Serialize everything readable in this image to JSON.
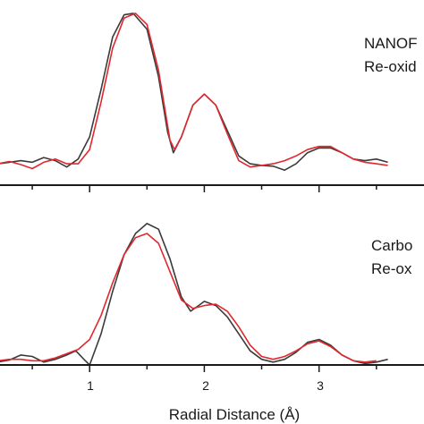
{
  "chart_data": {
    "type": "line",
    "xlabel": "Radial Distance (Å)",
    "xlim": [
      0,
      3.65
    ],
    "x_ticks": [
      "1",
      "2",
      "3"
    ],
    "colors": {
      "data": "#3b3b3b",
      "fit": "#e0282e"
    },
    "panels": [
      {
        "label_lines": [
          "NANOF",
          "Re-oxid"
        ],
        "ylim": [
          0,
          1.05
        ],
        "series": [
          {
            "color_key": "data",
            "points": [
              [
                0.0,
                0.04
              ],
              [
                0.1,
                0.04
              ],
              [
                0.2,
                0.05
              ],
              [
                0.3,
                0.06
              ],
              [
                0.4,
                0.07
              ],
              [
                0.5,
                0.06
              ],
              [
                0.6,
                0.09
              ],
              [
                0.7,
                0.07
              ],
              [
                0.8,
                0.03
              ],
              [
                0.9,
                0.08
              ],
              [
                1.0,
                0.22
              ],
              [
                1.1,
                0.52
              ],
              [
                1.2,
                0.85
              ],
              [
                1.3,
                0.99
              ],
              [
                1.38,
                1.0
              ],
              [
                1.5,
                0.9
              ],
              [
                1.6,
                0.6
              ],
              [
                1.68,
                0.25
              ],
              [
                1.73,
                0.12
              ],
              [
                1.8,
                0.22
              ],
              [
                1.9,
                0.42
              ],
              [
                2.0,
                0.49
              ],
              [
                2.1,
                0.42
              ],
              [
                2.2,
                0.26
              ],
              [
                2.3,
                0.1
              ],
              [
                2.4,
                0.05
              ],
              [
                2.5,
                0.04
              ],
              [
                2.6,
                0.035
              ],
              [
                2.7,
                0.01
              ],
              [
                2.8,
                0.05
              ],
              [
                2.9,
                0.12
              ],
              [
                3.0,
                0.15
              ],
              [
                3.1,
                0.15
              ],
              [
                3.2,
                0.12
              ],
              [
                3.3,
                0.08
              ],
              [
                3.4,
                0.07
              ],
              [
                3.5,
                0.08
              ],
              [
                3.6,
                0.06
              ]
            ]
          },
          {
            "color_key": "fit",
            "points": [
              [
                0.0,
                0.05
              ],
              [
                0.1,
                0.04
              ],
              [
                0.2,
                0.05
              ],
              [
                0.3,
                0.065
              ],
              [
                0.4,
                0.045
              ],
              [
                0.5,
                0.02
              ],
              [
                0.6,
                0.06
              ],
              [
                0.7,
                0.08
              ],
              [
                0.8,
                0.05
              ],
              [
                0.9,
                0.05
              ],
              [
                1.0,
                0.14
              ],
              [
                1.1,
                0.44
              ],
              [
                1.2,
                0.78
              ],
              [
                1.3,
                0.97
              ],
              [
                1.4,
                1.0
              ],
              [
                1.5,
                0.93
              ],
              [
                1.6,
                0.64
              ],
              [
                1.7,
                0.2
              ],
              [
                1.74,
                0.14
              ],
              [
                1.8,
                0.22
              ],
              [
                1.9,
                0.42
              ],
              [
                2.0,
                0.49
              ],
              [
                2.1,
                0.42
              ],
              [
                2.2,
                0.24
              ],
              [
                2.3,
                0.07
              ],
              [
                2.4,
                0.03
              ],
              [
                2.5,
                0.04
              ],
              [
                2.6,
                0.05
              ],
              [
                2.7,
                0.07
              ],
              [
                2.8,
                0.1
              ],
              [
                2.9,
                0.14
              ],
              [
                3.0,
                0.16
              ],
              [
                3.1,
                0.16
              ],
              [
                3.2,
                0.12
              ],
              [
                3.3,
                0.08
              ],
              [
                3.4,
                0.06
              ],
              [
                3.5,
                0.05
              ],
              [
                3.6,
                0.04
              ]
            ]
          }
        ]
      },
      {
        "label_lines": [
          "Carbo",
          "Re-ox"
        ],
        "ylim": [
          0,
          1.05
        ],
        "series": [
          {
            "color_key": "data",
            "points": [
              [
                0.0,
                0.04
              ],
              [
                0.1,
                0.03
              ],
              [
                0.2,
                0.02
              ],
              [
                0.3,
                0.035
              ],
              [
                0.4,
                0.07
              ],
              [
                0.5,
                0.06
              ],
              [
                0.6,
                0.02
              ],
              [
                0.7,
                0.04
              ],
              [
                0.8,
                0.07
              ],
              [
                0.88,
                0.1
              ],
              [
                0.95,
                0.04
              ],
              [
                1.0,
                0.0
              ],
              [
                1.1,
                0.22
              ],
              [
                1.2,
                0.52
              ],
              [
                1.3,
                0.78
              ],
              [
                1.4,
                0.93
              ],
              [
                1.5,
                1.0
              ],
              [
                1.6,
                0.96
              ],
              [
                1.7,
                0.75
              ],
              [
                1.8,
                0.48
              ],
              [
                1.88,
                0.38
              ],
              [
                1.95,
                0.42
              ],
              [
                2.0,
                0.45
              ],
              [
                2.1,
                0.42
              ],
              [
                2.2,
                0.34
              ],
              [
                2.3,
                0.22
              ],
              [
                2.4,
                0.1
              ],
              [
                2.5,
                0.04
              ],
              [
                2.6,
                0.02
              ],
              [
                2.7,
                0.04
              ],
              [
                2.8,
                0.09
              ],
              [
                2.9,
                0.16
              ],
              [
                3.0,
                0.18
              ],
              [
                3.1,
                0.14
              ],
              [
                3.2,
                0.07
              ],
              [
                3.3,
                0.03
              ],
              [
                3.4,
                0.01
              ],
              [
                3.5,
                0.02
              ],
              [
                3.6,
                0.04
              ]
            ]
          },
          {
            "color_key": "fit",
            "points": [
              [
                0.0,
                0.02
              ],
              [
                0.1,
                0.02
              ],
              [
                0.2,
                0.03
              ],
              [
                0.3,
                0.04
              ],
              [
                0.4,
                0.04
              ],
              [
                0.5,
                0.03
              ],
              [
                0.6,
                0.03
              ],
              [
                0.7,
                0.05
              ],
              [
                0.8,
                0.08
              ],
              [
                0.9,
                0.11
              ],
              [
                1.0,
                0.18
              ],
              [
                1.1,
                0.35
              ],
              [
                1.2,
                0.58
              ],
              [
                1.3,
                0.78
              ],
              [
                1.4,
                0.9
              ],
              [
                1.5,
                0.93
              ],
              [
                1.6,
                0.86
              ],
              [
                1.7,
                0.66
              ],
              [
                1.8,
                0.46
              ],
              [
                1.9,
                0.4
              ],
              [
                2.0,
                0.42
              ],
              [
                2.1,
                0.43
              ],
              [
                2.2,
                0.38
              ],
              [
                2.3,
                0.27
              ],
              [
                2.4,
                0.14
              ],
              [
                2.5,
                0.06
              ],
              [
                2.6,
                0.04
              ],
              [
                2.7,
                0.06
              ],
              [
                2.8,
                0.1
              ],
              [
                2.9,
                0.15
              ],
              [
                3.0,
                0.17
              ],
              [
                3.1,
                0.13
              ],
              [
                3.2,
                0.07
              ],
              [
                3.3,
                0.03
              ],
              [
                3.4,
                0.02
              ],
              [
                3.5,
                0.03
              ]
            ]
          }
        ]
      }
    ]
  }
}
